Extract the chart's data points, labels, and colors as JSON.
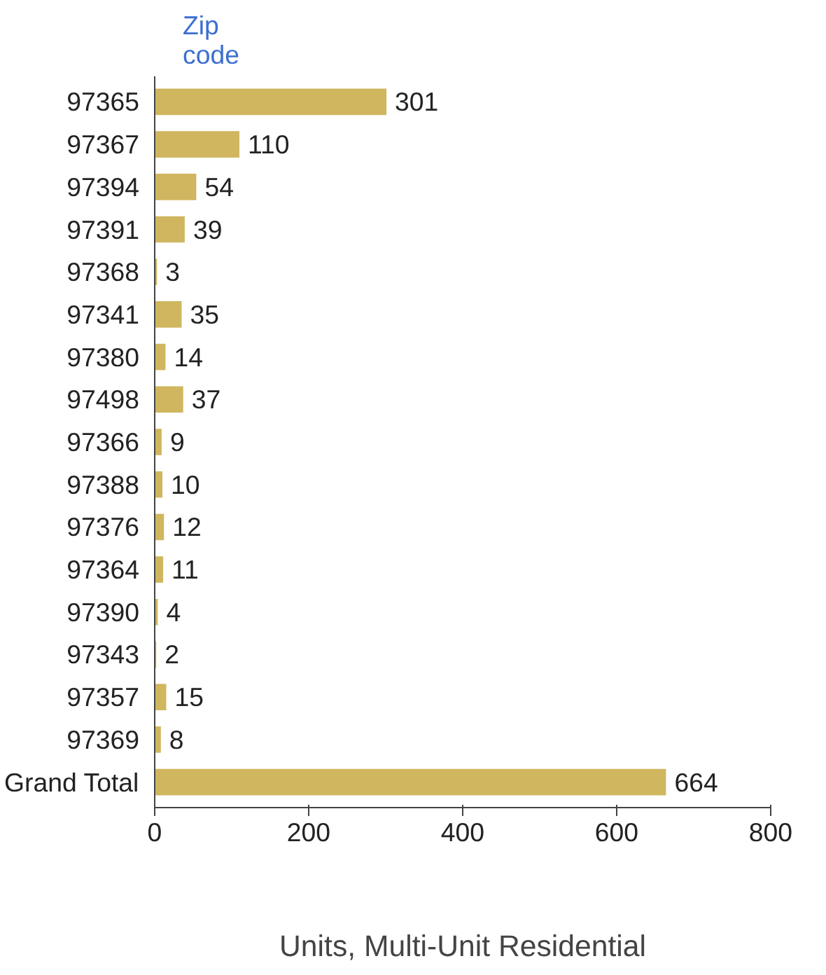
{
  "chart_data": {
    "type": "bar",
    "orientation": "horizontal",
    "ylabel": "Zip code",
    "xlabel": "Units, Multi-Unit Residential",
    "categories": [
      "97365",
      "97367",
      "97394",
      "97391",
      "97368",
      "97341",
      "97380",
      "97498",
      "97366",
      "97388",
      "97376",
      "97364",
      "97390",
      "97343",
      "97357",
      "97369",
      "Grand Total"
    ],
    "values": [
      301,
      110,
      54,
      39,
      3,
      35,
      14,
      37,
      9,
      10,
      12,
      11,
      4,
      2,
      15,
      8,
      664
    ],
    "color": "#cfb65f",
    "xlim": [
      0,
      800
    ],
    "xticks": [
      0,
      200,
      400,
      600,
      800
    ],
    "grid": false,
    "data_labels": true
  }
}
